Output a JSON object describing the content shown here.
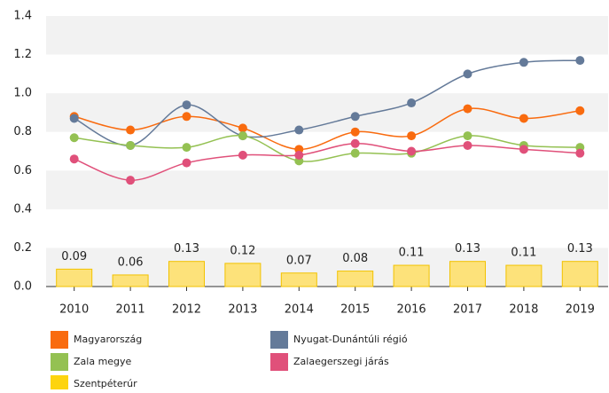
{
  "chart_data": {
    "type": "line",
    "categories": [
      "2010",
      "2011",
      "2012",
      "2013",
      "2014",
      "2015",
      "2016",
      "2017",
      "2018",
      "2019"
    ],
    "ylim": [
      0,
      1.4
    ],
    "yticks": [
      0.0,
      0.2,
      0.4,
      0.6,
      0.8,
      1.0,
      1.2,
      1.4
    ],
    "ytick_labels": [
      "0.0",
      "0.2",
      "0.4",
      "0.6",
      "0.8",
      "1.0",
      "1.2",
      "1.4"
    ],
    "grid": true,
    "series": [
      {
        "name": "Magyarország",
        "color": "#f96b0f",
        "type": "line",
        "values": [
          0.88,
          0.81,
          0.88,
          0.82,
          0.71,
          0.8,
          0.78,
          0.92,
          0.87,
          0.91
        ]
      },
      {
        "name": "Nyugat-Dunántúli régió",
        "color": "#647a99",
        "type": "line",
        "values": [
          0.87,
          0.73,
          0.94,
          0.78,
          0.81,
          0.88,
          0.95,
          1.1,
          1.16,
          1.17
        ]
      },
      {
        "name": "Zala megye",
        "color": "#94c152",
        "type": "line",
        "values": [
          0.77,
          0.73,
          0.72,
          0.78,
          0.65,
          0.69,
          0.69,
          0.78,
          0.73,
          0.72
        ]
      },
      {
        "name": "Zalaegerszegi járás",
        "color": "#e0507a",
        "type": "line",
        "values": [
          0.66,
          0.55,
          0.64,
          0.68,
          0.68,
          0.74,
          0.7,
          0.73,
          0.71,
          0.69
        ]
      },
      {
        "name": "Szentpéterúr",
        "color": "#fde27a",
        "type": "bar",
        "values": [
          0.09,
          0.06,
          0.13,
          0.12,
          0.07,
          0.08,
          0.11,
          0.13,
          0.11,
          0.13
        ]
      }
    ]
  }
}
